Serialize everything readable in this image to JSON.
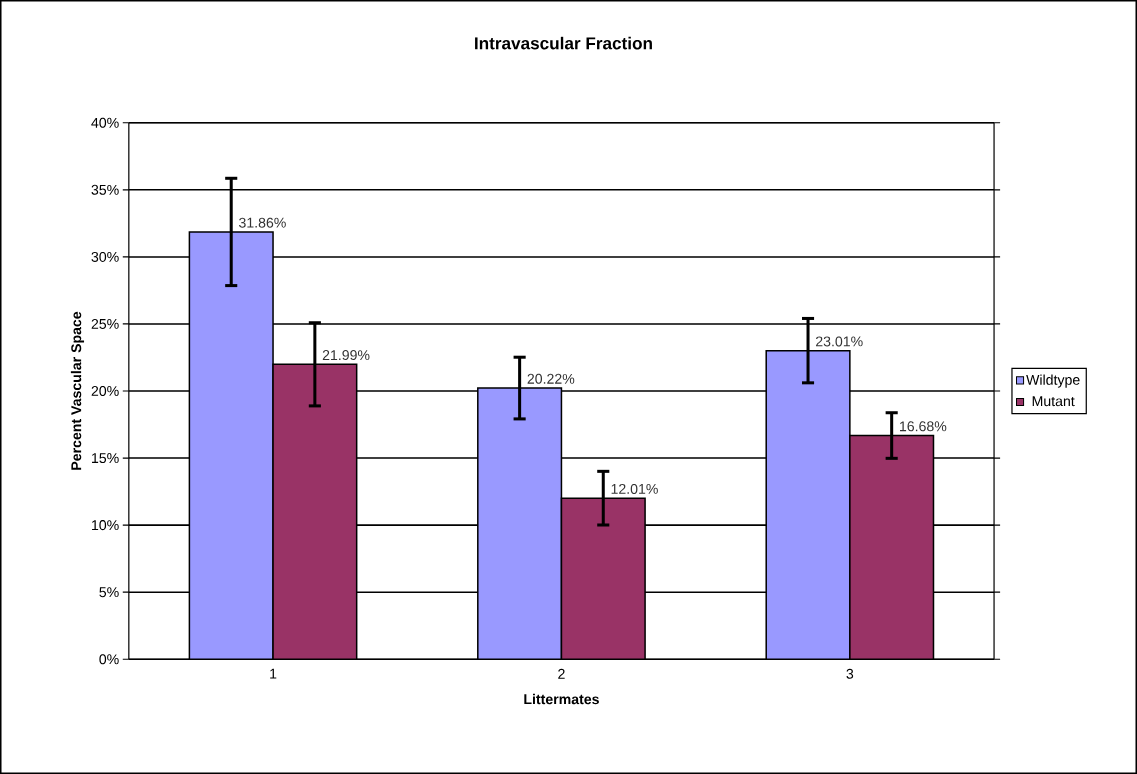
{
  "chart_data": {
    "type": "bar",
    "title": "Intravascular Fraction",
    "xlabel": "Littermates",
    "ylabel": "Percent Vascular Space",
    "categories": [
      "1",
      "2",
      "3"
    ],
    "series": [
      {
        "name": "Wildtype",
        "color": "#9999ff",
        "values": [
          31.86,
          20.22,
          23.01
        ],
        "errors": [
          4.0,
          2.3,
          2.4
        ],
        "value_labels": [
          "31.86%",
          "20.22%",
          "23.01%"
        ]
      },
      {
        "name": "Mutant",
        "color": "#993366",
        "values": [
          21.99,
          12.01,
          16.68
        ],
        "errors": [
          3.1,
          2.0,
          1.7
        ],
        "value_labels": [
          "21.99%",
          "12.01%",
          "16.68%"
        ]
      }
    ],
    "ylim": [
      0,
      40
    ],
    "yticks": [
      {
        "value": 0,
        "label": "0%"
      },
      {
        "value": 5,
        "label": "5%"
      },
      {
        "value": 10,
        "label": "10%"
      },
      {
        "value": 15,
        "label": "15%"
      },
      {
        "value": 20,
        "label": "20%"
      },
      {
        "value": 25,
        "label": "25%"
      },
      {
        "value": 30,
        "label": "30%"
      },
      {
        "value": 35,
        "label": "35%"
      },
      {
        "value": 40,
        "label": "40%"
      }
    ],
    "grid": "y",
    "legend": "right"
  }
}
